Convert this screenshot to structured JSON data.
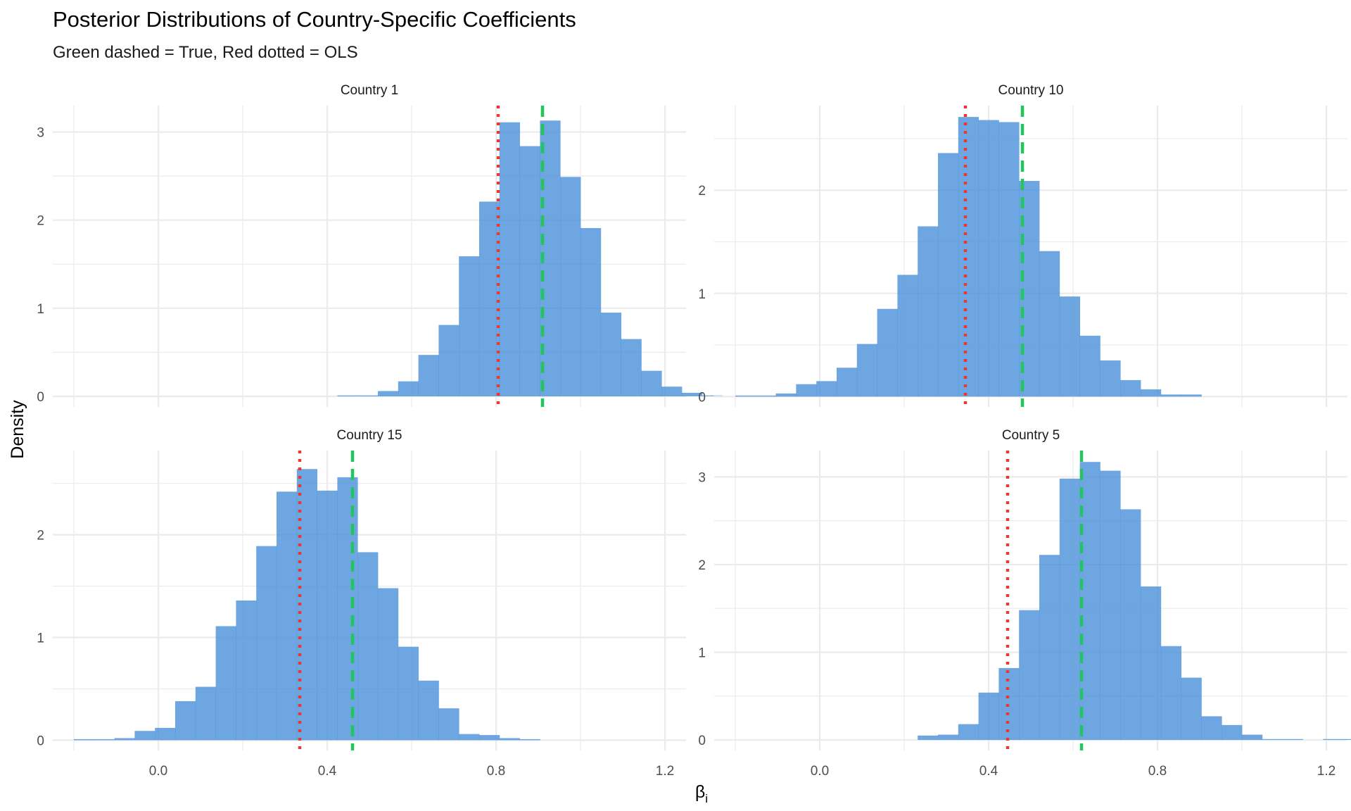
{
  "chart_data": {
    "type": "histogram-facet",
    "title": "Posterior Distributions of Country-Specific Coefficients",
    "subtitle": "Green dashed = True, Red dotted = OLS",
    "xlabel": "β",
    "xlabel_sub": "i",
    "ylabel": "Density",
    "xlim": [
      -0.25,
      1.25
    ],
    "x_ticks": [
      0.0,
      0.4,
      0.8,
      1.2
    ],
    "x_tick_labels": [
      "0.0",
      "0.4",
      "0.8",
      "1.2"
    ],
    "bin_start": -0.2,
    "bin_width": 0.048,
    "colors": {
      "fill": "#4A90D9",
      "true_line": "#22C55E",
      "ols_line": "#E53935",
      "grid": "#EBEBEB"
    },
    "panels": [
      {
        "label": "Country 1",
        "ylim": [
          -0.12,
          3.3
        ],
        "y_ticks": [
          0,
          1,
          2,
          3
        ],
        "y_tick_labels": [
          "0",
          "1",
          "2",
          "3"
        ],
        "true_value": 0.91,
        "ols_value": 0.805,
        "values": [
          0,
          0,
          0,
          0,
          0,
          0,
          0,
          0,
          0,
          0,
          0,
          0,
          0,
          0.01,
          0.01,
          0.06,
          0.17,
          0.47,
          0.81,
          1.59,
          2.21,
          3.11,
          2.84,
          3.13,
          2.49,
          1.91,
          0.95,
          0.65,
          0.29,
          0.11,
          0.04,
          0.01
        ]
      },
      {
        "label": "Country 10",
        "ylim": [
          -0.1,
          2.82
        ],
        "y_ticks": [
          0,
          1,
          2
        ],
        "y_tick_labels": [
          "0",
          "1",
          "2"
        ],
        "true_value": 0.48,
        "ols_value": 0.345,
        "values": [
          0.01,
          0.01,
          0.03,
          0.12,
          0.15,
          0.28,
          0.51,
          0.85,
          1.18,
          1.65,
          2.36,
          2.71,
          2.68,
          2.66,
          2.09,
          1.41,
          0.97,
          0.59,
          0.35,
          0.16,
          0.07,
          0.02,
          0.02
        ]
      },
      {
        "label": "Country 15",
        "ylim": [
          -0.1,
          2.82
        ],
        "y_ticks": [
          0,
          1,
          2
        ],
        "y_tick_labels": [
          "0",
          "1",
          "2"
        ],
        "true_value": 0.46,
        "ols_value": 0.335,
        "values": [
          0.01,
          0.01,
          0.02,
          0.09,
          0.12,
          0.38,
          0.52,
          1.11,
          1.36,
          1.89,
          2.42,
          2.64,
          2.43,
          2.56,
          1.83,
          1.48,
          0.91,
          0.58,
          0.31,
          0.06,
          0.05,
          0.02,
          0.01
        ]
      },
      {
        "label": "Country 5",
        "ylim": [
          -0.12,
          3.3
        ],
        "y_ticks": [
          0,
          1,
          2,
          3
        ],
        "y_tick_labels": [
          "0",
          "1",
          "2",
          "3"
        ],
        "true_value": 0.62,
        "ols_value": 0.445,
        "values": [
          0,
          0,
          0,
          0,
          0,
          0,
          0,
          0,
          0,
          0.05,
          0.06,
          0.18,
          0.54,
          0.82,
          1.48,
          2.11,
          2.98,
          3.17,
          3.07,
          2.63,
          1.75,
          1.07,
          0.71,
          0.27,
          0.17,
          0.06,
          0.01,
          0.01,
          0,
          0.01,
          0.01
        ]
      }
    ]
  }
}
